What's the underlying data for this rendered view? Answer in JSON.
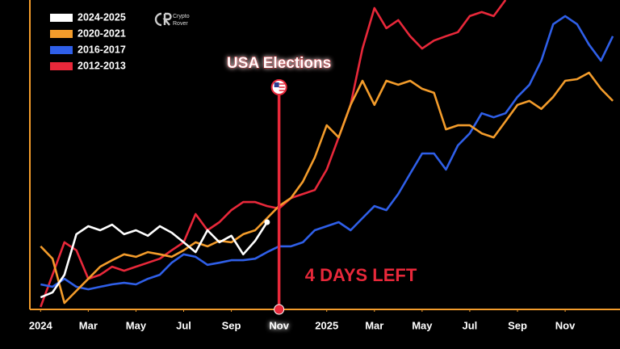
{
  "chart_data": {
    "type": "line",
    "annotations": [
      "USA Elections",
      "4 DAYS LEFT"
    ],
    "logo": [
      "Crypto",
      "Rover"
    ],
    "xlim": [
      -0.45,
      24.3
    ],
    "ylim": [
      0,
      100
    ],
    "xticks": [
      {
        "value": 0,
        "label": "2024"
      },
      {
        "value": 2,
        "label": "Mar"
      },
      {
        "value": 4,
        "label": "May"
      },
      {
        "value": 6,
        "label": "Jul"
      },
      {
        "value": 8,
        "label": "Sep"
      },
      {
        "value": 10,
        "label": "Nov"
      },
      {
        "value": 12,
        "label": "2025"
      },
      {
        "value": 14,
        "label": "Mar"
      },
      {
        "value": 16,
        "label": "May"
      },
      {
        "value": 18,
        "label": "Jul"
      },
      {
        "value": 20,
        "label": "Sep"
      },
      {
        "value": 22,
        "label": "Nov"
      }
    ],
    "x": [
      0,
      0.5,
      1,
      1.5,
      2,
      2.5,
      3,
      3.5,
      4,
      4.5,
      5,
      5.5,
      6,
      6.5,
      7,
      7.5,
      8,
      8.5,
      9,
      9.5,
      10,
      10.5,
      11,
      11.5,
      12,
      12.5,
      13,
      13.5,
      14,
      14.5,
      15,
      15.5,
      16,
      16.5,
      17,
      17.5,
      18,
      18.5,
      19,
      19.5,
      20,
      20.5,
      21,
      21.5,
      22,
      22.5,
      23,
      23.5,
      24
    ],
    "series": [
      {
        "name": "2024-2025",
        "color": "#ffffff",
        "values": [
          3.9,
          5.5,
          11.2,
          24.3,
          26.9,
          25.6,
          27.4,
          24.3,
          25.6,
          23.8,
          26.9,
          24.8,
          21.7,
          18.5,
          25.6,
          21.7,
          23.8,
          17.8,
          22.2,
          28.2,
          null,
          null,
          null,
          null,
          null,
          null,
          null,
          null,
          null,
          null,
          null,
          null,
          null,
          null,
          null,
          null,
          null,
          null,
          null,
          null,
          null,
          null,
          null,
          null,
          null,
          null,
          null,
          null,
          null
        ]
      },
      {
        "name": "2020-2021",
        "color": "#f39c2b",
        "values": [
          20.4,
          16.4,
          2.1,
          6,
          9.9,
          13.8,
          15.9,
          17.8,
          17,
          18.5,
          17.8,
          17,
          19.1,
          21.7,
          20.4,
          22.2,
          21.7,
          24.3,
          25.6,
          29.5,
          33.4,
          36,
          41.3,
          49.1,
          59.5,
          55.6,
          66.1,
          73.9,
          66.1,
          73.9,
          72.6,
          73.9,
          71.3,
          70,
          58.2,
          59.5,
          59.5,
          56.9,
          55.6,
          60.8,
          66.1,
          67.4,
          64.8,
          68.7,
          73.9,
          74.4,
          76.5,
          71.3,
          67.4
        ]
      },
      {
        "name": "2016-2017",
        "color": "#2f5fe8",
        "values": [
          8.1,
          7.3,
          9.9,
          7.3,
          6.5,
          7.3,
          8.1,
          8.6,
          8.1,
          9.9,
          11.2,
          15.1,
          17.8,
          17,
          14.4,
          15.1,
          15.9,
          15.9,
          16.4,
          18.5,
          20.4,
          20.4,
          21.7,
          25.6,
          26.9,
          28.2,
          25.6,
          29.5,
          33.4,
          32.1,
          37.3,
          43.9,
          50.4,
          50.4,
          45.2,
          53,
          56.9,
          63.4,
          62.1,
          63.4,
          68.7,
          72.6,
          80.4,
          92.2,
          94.8,
          92.2,
          85.6,
          80.4,
          88.3
        ]
      },
      {
        "name": "2012-2013",
        "color": "#e8283a",
        "values": [
          0.8,
          11.2,
          21.7,
          19.1,
          9.9,
          11.2,
          13.8,
          12.5,
          13.8,
          15.1,
          16.4,
          19.1,
          21.7,
          30.8,
          25.6,
          28.2,
          32.1,
          34.7,
          34.7,
          33.4,
          32.6,
          36,
          37.3,
          38.6,
          45.2,
          55.6,
          66.1,
          84.3,
          97.4,
          90.9,
          93.5,
          88.3,
          84.3,
          86.9,
          88.3,
          89.6,
          94.8,
          96.1,
          94.8,
          100,
          null,
          null,
          null,
          null,
          null,
          null,
          null,
          null,
          null
        ]
      }
    ]
  }
}
